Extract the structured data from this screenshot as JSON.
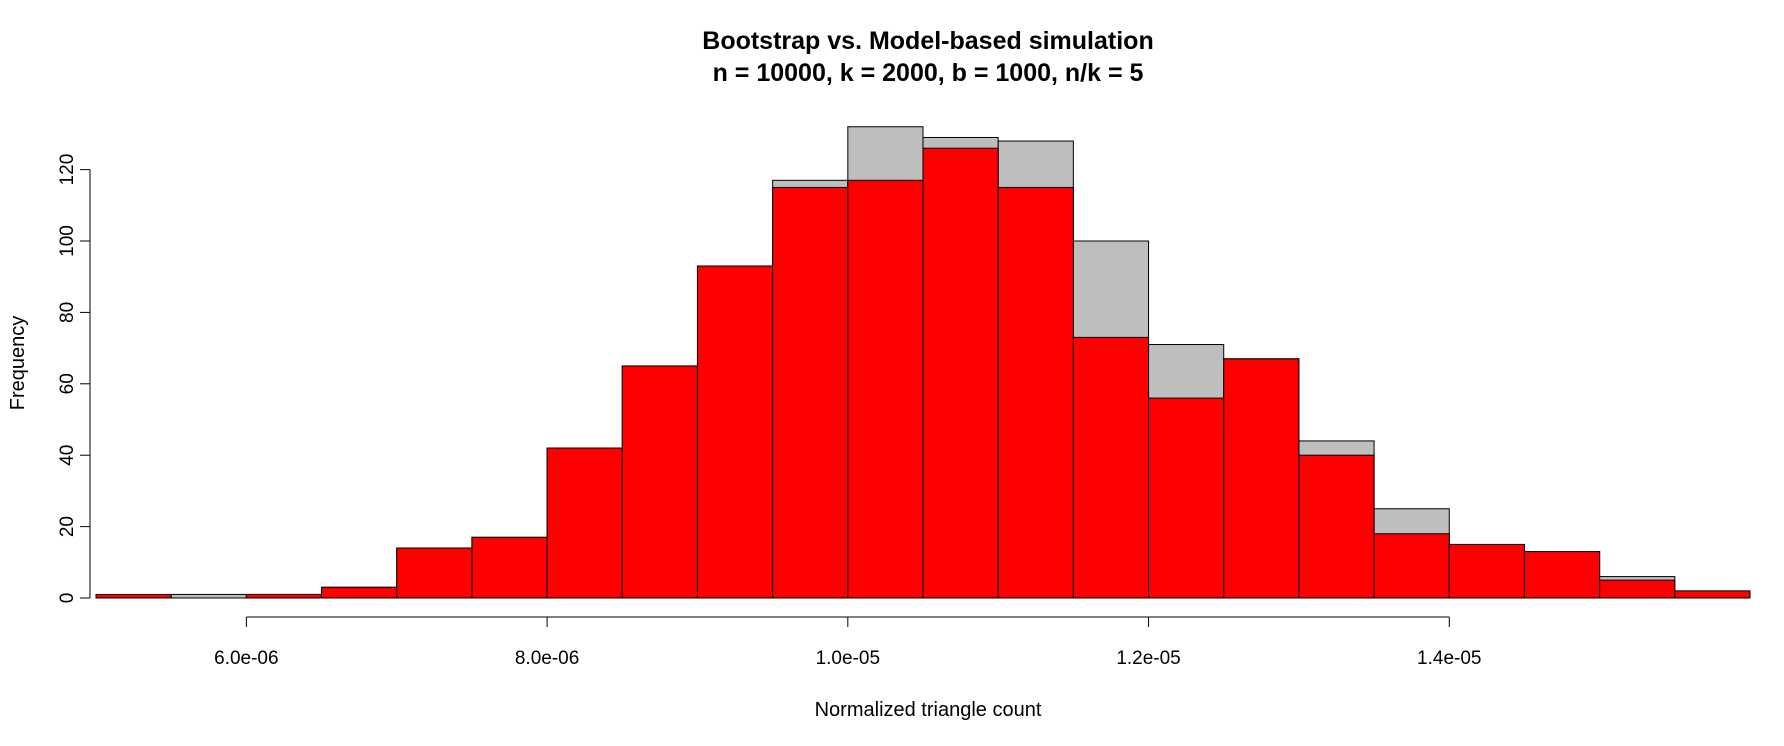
{
  "chart_data": {
    "type": "bar",
    "title": "Bootstrap vs. Model-based simulation",
    "subtitle": "n = 10000, k = 2000, b = 1000, n/k = 5",
    "xlabel": "Normalized triangle count",
    "ylabel": "Frequency",
    "bin_width": 5e-07,
    "xlim": [
      5e-06,
      1.6e-05
    ],
    "ylim": [
      0,
      130
    ],
    "x_ticks": [
      6e-06,
      8e-06,
      1e-05,
      1.2e-05,
      1.4e-05
    ],
    "x_tick_labels": [
      "6.0e-06",
      "8.0e-06",
      "1.0e-05",
      "1.2e-05",
      "1.4e-05"
    ],
    "y_ticks": [
      0,
      20,
      40,
      60,
      80,
      100,
      120
    ],
    "y_tick_labels": [
      "0",
      "20",
      "40",
      "60",
      "80",
      "100",
      "120"
    ],
    "grid": false,
    "legend": "none",
    "series": [
      {
        "color": "#BEBEBE",
        "bin_starts": [
          5e-06,
          5.5e-06,
          6e-06,
          6.5e-06,
          7e-06,
          7.5e-06,
          8e-06,
          8.5e-06,
          9e-06,
          9.5e-06,
          1e-05,
          1.05e-05,
          1.1e-05,
          1.15e-05,
          1.2e-05,
          1.25e-05,
          1.3e-05,
          1.35e-05,
          1.4e-05,
          1.45e-05,
          1.5e-05
        ],
        "values": [
          0,
          1,
          1,
          3,
          14,
          17,
          42,
          65,
          93,
          117,
          132,
          129,
          128,
          100,
          71,
          67,
          44,
          25,
          15,
          13,
          6
        ]
      },
      {
        "color": "#FF0000",
        "bin_starts": [
          5e-06,
          5.5e-06,
          6e-06,
          6.5e-06,
          7e-06,
          7.5e-06,
          8e-06,
          8.5e-06,
          9e-06,
          9.5e-06,
          1e-05,
          1.05e-05,
          1.1e-05,
          1.15e-05,
          1.2e-05,
          1.25e-05,
          1.3e-05,
          1.35e-05,
          1.4e-05,
          1.45e-05,
          1.5e-05,
          1.55e-05
        ],
        "values": [
          1,
          0,
          1,
          3,
          14,
          17,
          42,
          65,
          93,
          115,
          117,
          126,
          115,
          73,
          56,
          67,
          40,
          18,
          15,
          13,
          5,
          2
        ]
      }
    ]
  }
}
